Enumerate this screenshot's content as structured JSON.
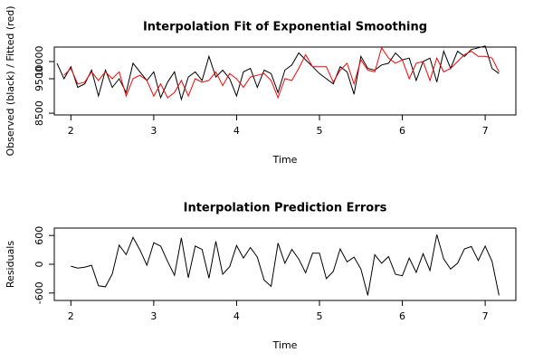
{
  "chart_data": [
    {
      "type": "line",
      "title": "Interpolation Fit of Exponential Smoothing",
      "xlabel": "Time",
      "ylabel": "Observed (black) / Fitted (red)",
      "x": [
        1.833,
        1.917,
        2,
        2.083,
        2.167,
        2.25,
        2.333,
        2.417,
        2.5,
        2.583,
        2.667,
        2.75,
        2.833,
        2.917,
        3,
        3.083,
        3.167,
        3.25,
        3.333,
        3.417,
        3.5,
        3.583,
        3.667,
        3.75,
        3.833,
        3.917,
        4,
        4.083,
        4.167,
        4.25,
        4.333,
        4.417,
        4.5,
        4.583,
        4.667,
        4.75,
        4.833,
        4.917,
        5,
        5.083,
        5.167,
        5.25,
        5.333,
        5.417,
        5.5,
        5.583,
        5.667,
        5.75,
        5.833,
        5.917,
        6,
        6.083,
        6.167,
        6.25,
        6.333,
        6.417,
        6.5,
        6.583,
        6.667,
        6.75,
        6.833,
        6.917,
        7,
        7.083,
        7.167
      ],
      "series": [
        {
          "color": "#000000",
          "values": [
            9950,
            9500,
            9850,
            9250,
            9350,
            9750,
            9000,
            9750,
            9250,
            9500,
            9100,
            9950,
            9700,
            9450,
            9700,
            8950,
            9400,
            9700,
            8900,
            9550,
            9700,
            9450,
            10150,
            9550,
            9750,
            9500,
            9000,
            9700,
            9800,
            9250,
            9750,
            9650,
            9100,
            9750,
            9900,
            10250,
            10050,
            9850,
            9650,
            9500,
            9350,
            9850,
            9700,
            9050,
            10150,
            9800,
            9750,
            9900,
            9950,
            10250,
            10050,
            10100,
            9450,
            10000,
            10100,
            9400,
            10300,
            9800,
            10300,
            10150,
            10350,
            10400,
            10450,
            9800,
            9650
          ]
        },
        {
          "color": "#ff0000",
          "values": [
            null,
            9600,
            9800,
            9350,
            9400,
            9700,
            9450,
            9700,
            9500,
            9700,
            9000,
            9500,
            9600,
            9450,
            9000,
            9350,
            8950,
            9100,
            9450,
            9000,
            9500,
            9400,
            9450,
            9700,
            9300,
            9650,
            9500,
            9250,
            9550,
            9600,
            9650,
            9450,
            8950,
            9500,
            9450,
            9800,
            10200,
            9850,
            9850,
            9850,
            9400,
            9750,
            9950,
            9350,
            10050,
            9750,
            9700,
            10400,
            10100,
            9950,
            10050,
            9500,
            9950,
            10000,
            9450,
            10100,
            9700,
            9800,
            10000,
            10200,
            10300,
            10150,
            10150,
            10100,
            9700
          ]
        }
      ],
      "xlim": [
        1.8,
        7.37
      ],
      "xticks": [
        2,
        3,
        4,
        5,
        6,
        7
      ],
      "ylim": [
        8450,
        10420
      ],
      "yticks": [
        8500,
        9500,
        10000
      ]
    },
    {
      "type": "line",
      "title": "Interpolation Prediction Errors",
      "xlabel": "Time",
      "ylabel": "Residuals",
      "x": [
        2,
        2.083,
        2.167,
        2.25,
        2.333,
        2.417,
        2.5,
        2.583,
        2.667,
        2.75,
        2.833,
        2.917,
        3,
        3.083,
        3.167,
        3.25,
        3.333,
        3.417,
        3.5,
        3.583,
        3.667,
        3.75,
        3.833,
        3.917,
        4,
        4.083,
        4.167,
        4.25,
        4.333,
        4.417,
        4.5,
        4.583,
        4.667,
        4.75,
        4.833,
        4.917,
        5,
        5.083,
        5.167,
        5.25,
        5.333,
        5.417,
        5.5,
        5.583,
        5.667,
        5.75,
        5.833,
        5.917,
        6,
        6.083,
        6.167,
        6.25,
        6.333,
        6.417,
        6.5,
        6.583,
        6.667,
        6.75,
        6.833,
        6.917,
        7,
        7.083,
        7.167
      ],
      "series": [
        {
          "color": "#000000",
          "values": [
            -40,
            -80,
            -60,
            -20,
            -450,
            -470,
            -200,
            400,
            200,
            560,
            300,
            -20,
            450,
            380,
            60,
            -230,
            550,
            -280,
            380,
            310,
            -290,
            480,
            -210,
            -50,
            390,
            130,
            350,
            150,
            -330,
            -460,
            440,
            20,
            310,
            110,
            -180,
            230,
            230,
            -300,
            -150,
            320,
            50,
            150,
            -100,
            -650,
            200,
            20,
            160,
            -210,
            -240,
            130,
            -170,
            220,
            -130,
            620,
            110,
            -100,
            20,
            320,
            370,
            80,
            380,
            60,
            -650
          ]
        }
      ],
      "xlim": [
        1.8,
        7.37
      ],
      "xticks": [
        2,
        3,
        4,
        5,
        6,
        7
      ],
      "ylim": [
        -755,
        755
      ],
      "yticks": [
        -600,
        0,
        600
      ]
    }
  ]
}
